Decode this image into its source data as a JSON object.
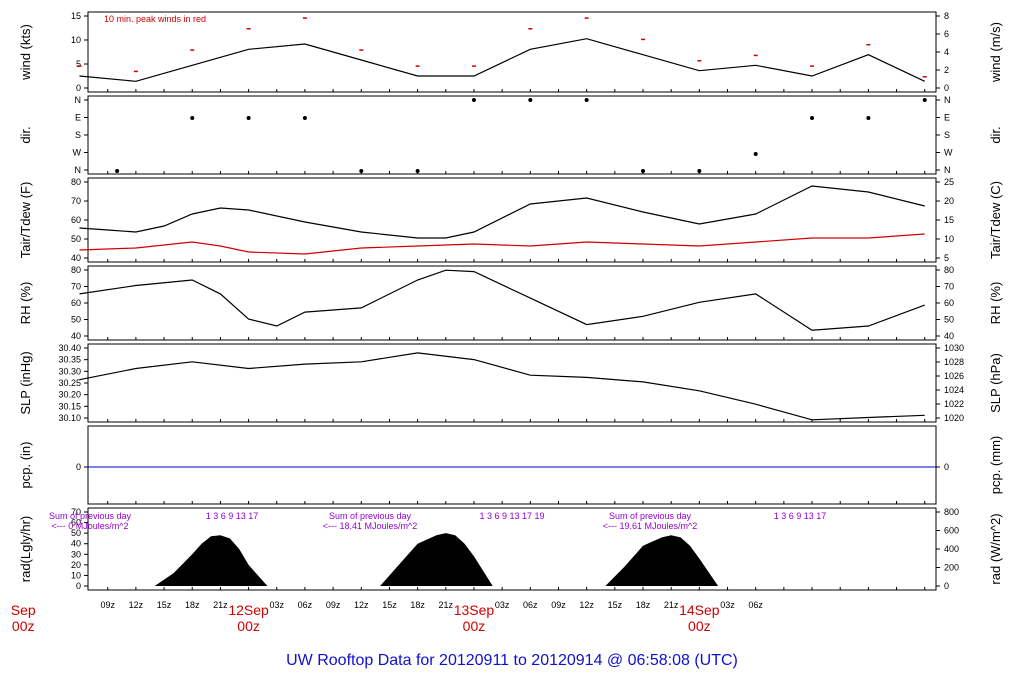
{
  "title": "UW Rooftop Data for 20120911  to  20120914 @ 06:58:08  (UTC)",
  "colors": {
    "frame": "#000000",
    "peak": "#d00000",
    "dew": "#d00000",
    "pcp": "#0000cc",
    "rad_note": "#9400d3",
    "title": "#1010d0",
    "day_label": "#d00000"
  },
  "x_axis": {
    "hour_ticks": [
      "09z",
      "12z",
      "15z",
      "18z",
      "21z",
      "03z",
      "06z",
      "09z",
      "12z",
      "15z",
      "18z",
      "21z",
      "03z",
      "06z",
      "09z",
      "12z",
      "15z",
      "18z",
      "21z",
      "03z",
      "06z"
    ],
    "day_labels": [
      {
        "date": "Sep",
        "hour": "00z"
      },
      {
        "date": "12Sep",
        "hour": "00z"
      },
      {
        "date": "13Sep",
        "hour": "00z"
      },
      {
        "date": "14Sep",
        "hour": "00z"
      }
    ]
  },
  "chart_data": [
    {
      "type": "line",
      "panel": "wind",
      "ylabel_left": "wind (kts)",
      "ylabel_right": "wind (m/s)",
      "ylim": [
        0,
        15
      ],
      "ticks_left": [
        "0",
        "5",
        "10",
        "15"
      ],
      "ticks_right": [
        "0",
        "2",
        "4",
        "6",
        "8"
      ],
      "annotation": "10 min. peak winds in red",
      "series": [
        {
          "name": "",
          "x_hours": [
            6,
            12,
            18,
            24,
            30,
            36,
            42,
            48,
            54,
            60,
            66,
            72,
            78,
            84,
            90,
            96
          ],
          "values": [
            3,
            2,
            5,
            8,
            9,
            6,
            3,
            3,
            8,
            10,
            7,
            4,
            5,
            3,
            7,
            2
          ]
        },
        {
          "name": "10 min. peak winds",
          "x_hours": [
            6,
            12,
            18,
            24,
            30,
            36,
            42,
            48,
            54,
            60,
            66,
            72,
            78,
            84,
            90,
            96
          ],
          "values": [
            5,
            4,
            8,
            12,
            14,
            8,
            5,
            5,
            12,
            14,
            10,
            6,
            7,
            5,
            9,
            3
          ]
        }
      ]
    },
    {
      "type": "scatter",
      "panel": "dir",
      "ylabel_left": "dir.",
      "ylabel_right": "dir.",
      "ticks_left": [
        "N",
        "W",
        "S",
        "E",
        "N"
      ],
      "ticks_right": [
        "N",
        "W",
        "S",
        "E",
        "N"
      ]
    },
    {
      "type": "line",
      "panel": "temp",
      "ylabel_left": "Tair/Tdew (F)",
      "ylabel_right": "Tair/Tdew (C)",
      "ylim": [
        38,
        80
      ],
      "ticks_left": [
        "40",
        "50",
        "60",
        "70",
        "80"
      ],
      "ticks_right": [
        "5",
        "10",
        "15",
        "20",
        "25"
      ],
      "series": [
        {
          "name": "",
          "x_hours": [
            6,
            9,
            12,
            15,
            18,
            21,
            24,
            30,
            36,
            42,
            45,
            48,
            54,
            60,
            66,
            72,
            78,
            84,
            90,
            96
          ],
          "values": [
            55,
            54,
            53,
            56,
            62,
            65,
            64,
            58,
            53,
            50,
            50,
            53,
            67,
            70,
            63,
            57,
            62,
            76,
            73,
            66
          ]
        },
        {
          "name": "",
          "x_hours": [
            6,
            12,
            18,
            21,
            24,
            30,
            36,
            42,
            48,
            54,
            60,
            66,
            72,
            78,
            84,
            90,
            96
          ],
          "values": [
            44,
            45,
            48,
            46,
            43,
            42,
            45,
            46,
            47,
            46,
            48,
            47,
            46,
            48,
            50,
            50,
            52
          ]
        }
      ]
    },
    {
      "type": "line",
      "panel": "rh",
      "ylabel_left": "RH (%)",
      "ylabel_right": "RH (%)",
      "ylim": [
        35,
        88
      ],
      "ticks_left": [
        "40",
        "50",
        "60",
        "70",
        "80"
      ],
      "ticks_right": [
        "40",
        "50",
        "60",
        "70",
        "80"
      ],
      "series": [
        {
          "name": "",
          "x_hours": [
            6,
            12,
            18,
            21,
            24,
            27,
            30,
            36,
            42,
            45,
            48,
            54,
            60,
            66,
            72,
            78,
            84,
            90,
            96
          ],
          "values": [
            68,
            74,
            78,
            68,
            50,
            45,
            55,
            58,
            78,
            85,
            84,
            65,
            46,
            52,
            62,
            68,
            42,
            45,
            60
          ]
        }
      ]
    },
    {
      "type": "line",
      "panel": "slp",
      "ylabel_left": "SLP (inHg)",
      "ylabel_right": "SLP (hPa)",
      "ylim": [
        30.1,
        30.45
      ],
      "ticks_left": [
        "30.10",
        "30.15",
        "30.20",
        "30.25",
        "30.30",
        "30.35",
        "30.40"
      ],
      "ticks_right": [
        "1020",
        "1022",
        "1024",
        "1026",
        "1028",
        "1030"
      ],
      "series": [
        {
          "name": "",
          "x_hours": [
            6,
            12,
            18,
            24,
            30,
            36,
            42,
            48,
            54,
            60,
            66,
            72,
            78,
            84,
            90,
            96
          ],
          "values": [
            30.29,
            30.34,
            30.37,
            30.34,
            30.36,
            30.37,
            30.41,
            30.38,
            30.31,
            30.3,
            30.28,
            30.24,
            30.18,
            30.11,
            30.12,
            30.13
          ]
        }
      ]
    },
    {
      "type": "line",
      "panel": "pcp",
      "ylabel_left": "pcp. (in)",
      "ylabel_right": "pcp. (mm)",
      "ticks_left": [
        "0"
      ],
      "ticks_right": [
        "0"
      ],
      "series": [
        {
          "name": "",
          "x_hours": [
            6,
            96
          ],
          "values": [
            0,
            0
          ]
        }
      ]
    },
    {
      "type": "area",
      "panel": "rad",
      "ylabel_left": "rad(Lgly/hr)",
      "ylabel_right": "rad (W/m^2)",
      "ylim": [
        0,
        70
      ],
      "ticks_left": [
        "0",
        "10",
        "20",
        "30",
        "40",
        "50",
        "60",
        "70"
      ],
      "ticks_right": [
        "0",
        "200",
        "400",
        "600",
        "800"
      ],
      "series": [
        {
          "name": "",
          "x_hours": [
            14,
            16,
            18,
            19,
            20,
            21,
            22,
            23,
            24,
            26
          ],
          "values": [
            0,
            12,
            30,
            40,
            47,
            48,
            45,
            35,
            20,
            0
          ]
        },
        {
          "name": "",
          "x_hours": [
            38,
            40,
            42,
            44,
            45,
            46,
            47,
            48,
            50
          ],
          "values": [
            0,
            20,
            40,
            48,
            50,
            48,
            40,
            28,
            0
          ]
        },
        {
          "name": "",
          "x_hours": [
            62,
            64,
            66,
            68,
            69,
            70,
            71,
            72,
            74
          ],
          "values": [
            0,
            18,
            38,
            46,
            48,
            46,
            38,
            26,
            0
          ]
        }
      ],
      "notes": [
        {
          "line1": "Sum of previous day",
          "line2": "<--- 0 MJoules/m^2",
          "hours": "1  3  6  9  13  17"
        },
        {
          "line1": "Sum of previous day",
          "line2": "<--- 18.41 MJoules/m^2",
          "hours": "1  3  6  9  13  17  19"
        },
        {
          "line1": "Sum of previous day",
          "line2": "<--- 19.61 MJoules/m^2",
          "hours": "1  3  6  9  13  17"
        }
      ]
    }
  ]
}
